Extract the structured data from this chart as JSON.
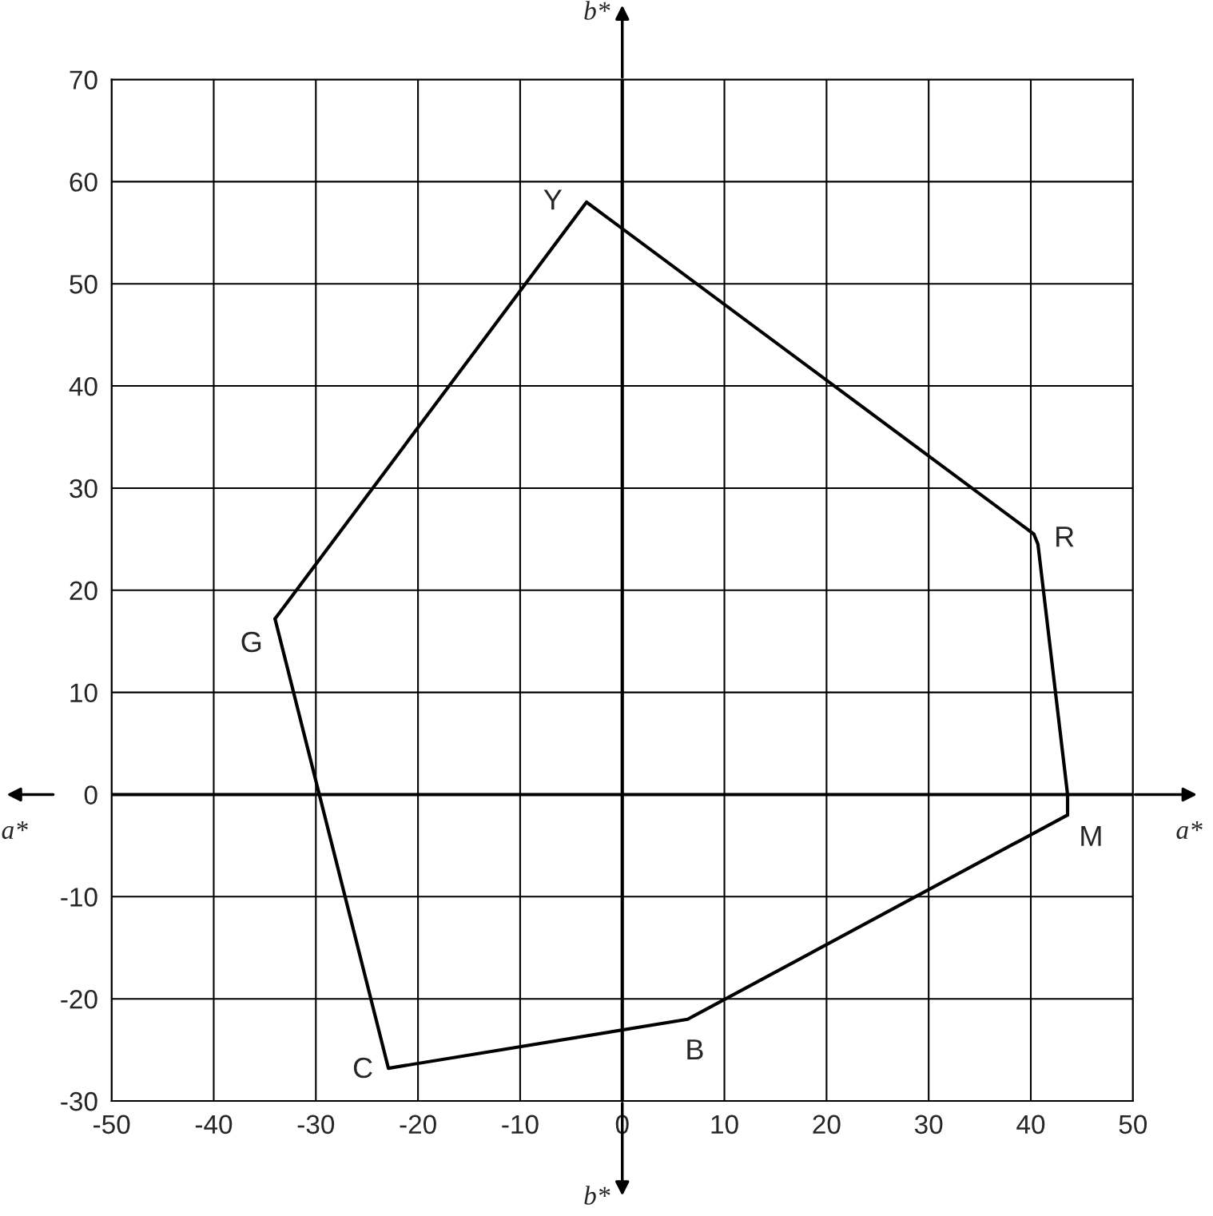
{
  "chart_data": {
    "type": "line",
    "series": [
      {
        "color": "#000000",
        "x": [
          -34.0,
          -3.5,
          40.3,
          40.7,
          43.6,
          43.6
        ],
        "values": [
          17.2,
          58.0,
          25.5,
          24.5,
          0.0,
          -2.0
        ]
      },
      {
        "color": "#000000",
        "x": [
          -34.0,
          -22.9,
          6.4,
          43.6
        ],
        "values": [
          17.2,
          -26.8,
          -22.0,
          -2.0
        ]
      }
    ],
    "xlim": [
      -50,
      50
    ],
    "xticks": [
      -50,
      -40,
      -30,
      -20,
      -10,
      0,
      10,
      20,
      30,
      40,
      50
    ],
    "ylim": [
      -30,
      70
    ],
    "yticks": [
      -30,
      -20,
      -10,
      0,
      10,
      20,
      30,
      40,
      50,
      60,
      70
    ],
    "grid": true,
    "marker": "none",
    "line_style": "solid",
    "annotations": [
      "Y",
      "R",
      "M",
      "B",
      "C",
      "G",
      "b*",
      "b*",
      "a*",
      "a*"
    ]
  }
}
